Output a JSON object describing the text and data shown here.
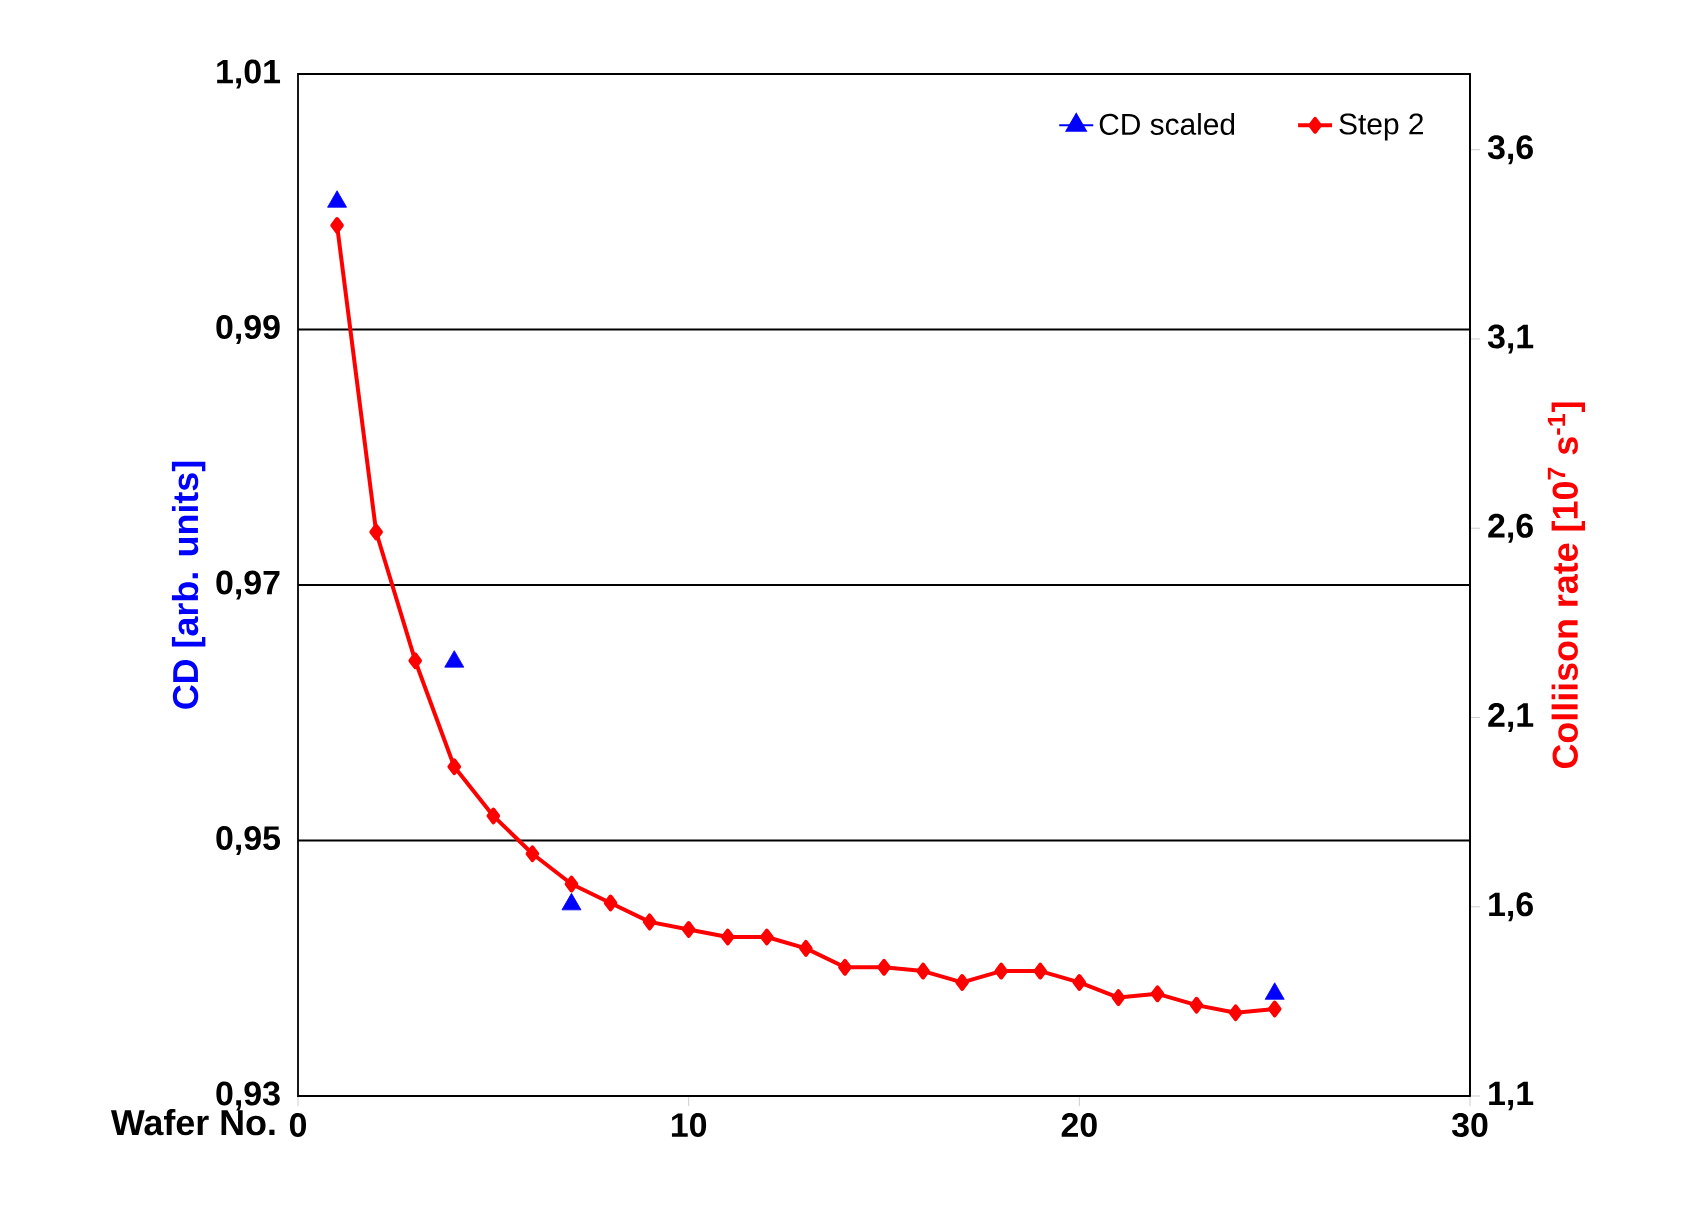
{
  "chart_data": {
    "type": "line",
    "xlabel": "Wafer No.",
    "ylabel": "CD [arb. units]",
    "y2label": "Colliison rate [10$^{7}$ s$^{-1}$]",
    "xlim": [
      0,
      30
    ],
    "xticks": [
      0,
      10,
      20,
      30
    ],
    "ylim": [
      0.93,
      1.01
    ],
    "yticks": [
      {
        "value": 0.93,
        "label": "0,93"
      },
      {
        "value": 0.95,
        "label": "0,95"
      },
      {
        "value": 0.97,
        "label": "0,97"
      },
      {
        "value": 0.99,
        "label": "0,99"
      },
      {
        "value": 1.01,
        "label": "1,01"
      }
    ],
    "y2lim": [
      1.1,
      3.8
    ],
    "y2ticks": [
      {
        "value": 1.1,
        "label": "1,1"
      },
      {
        "value": 1.6,
        "label": "1,6"
      },
      {
        "value": 2.1,
        "label": "2,1"
      },
      {
        "value": 2.6,
        "label": "2,6"
      },
      {
        "value": 3.1,
        "label": "3,1"
      },
      {
        "value": 3.6,
        "label": "3,6"
      }
    ],
    "grid": "y",
    "legend": "top right",
    "series": [
      {
        "name": "CD scaled",
        "type": "scatter",
        "color": "#0000ff",
        "marker": "triangle",
        "x": [
          1,
          4,
          7,
          25
        ],
        "values": [
          1.0,
          0.964,
          0.945,
          0.938
        ]
      },
      {
        "name": "Step 2",
        "color": "#ff0000",
        "marker": "diamond",
        "axis": "y2",
        "x": [
          1,
          2,
          3,
          4,
          5,
          6,
          7,
          8,
          9,
          10,
          11,
          12,
          13,
          14,
          15,
          16,
          17,
          18,
          19,
          20,
          21,
          22,
          23,
          24,
          25
        ],
        "values": [
          3.4,
          2.59,
          2.25,
          1.97,
          1.84,
          1.74,
          1.66,
          1.61,
          1.56,
          1.54,
          1.52,
          1.52,
          1.49,
          1.44,
          1.44,
          1.43,
          1.4,
          1.43,
          1.43,
          1.4,
          1.36,
          1.37,
          1.34,
          1.32,
          1.33
        ]
      }
    ]
  }
}
